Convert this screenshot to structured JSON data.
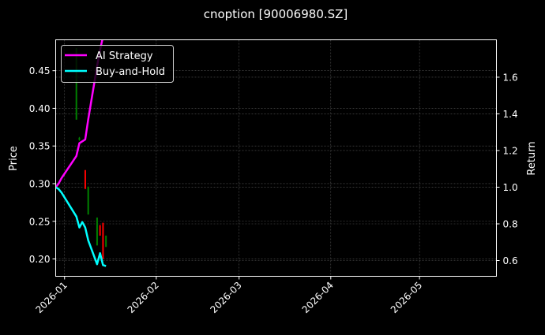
{
  "chart_data": {
    "type": "line",
    "title": "cnoption [90006980.SZ]",
    "xlabel": "",
    "ylabel_left": "Price",
    "ylabel_right": "Return",
    "xlim": [
      "2025-12-29",
      "2026-05-27"
    ],
    "ylim_left": [
      0.177,
      0.491
    ],
    "ylim_right": [
      0.514,
      1.804
    ],
    "x_ticks": [
      "2026-01",
      "2026-02",
      "2026-03",
      "2026-04",
      "2026-05"
    ],
    "x_tick_dates": [
      "2026-01-01",
      "2026-02-01",
      "2026-03-01",
      "2026-04-01",
      "2026-05-01"
    ],
    "y_ticks_left": [
      "0.20",
      "0.25",
      "0.30",
      "0.35",
      "0.40",
      "0.45"
    ],
    "y_ticks_right": [
      "0.6",
      "0.8",
      "1.0",
      "1.2",
      "1.4",
      "1.6"
    ],
    "grid": true,
    "legend_position": "top-left",
    "background": "#000000",
    "candles": {
      "up_color": "#008000",
      "down_color": "#ff0000",
      "data": [
        {
          "date": "2026-01-05",
          "open": 0.385,
          "high": 0.48,
          "low": 0.385,
          "close": 0.48
        },
        {
          "date": "2026-01-06",
          "open": 0.358,
          "high": 0.362,
          "low": 0.357,
          "close": 0.361
        },
        {
          "date": "2026-01-08",
          "open": 0.318,
          "high": 0.318,
          "low": 0.293,
          "close": 0.293
        },
        {
          "date": "2026-01-09",
          "open": 0.259,
          "high": 0.296,
          "low": 0.259,
          "close": 0.296
        },
        {
          "date": "2026-01-12",
          "open": 0.218,
          "high": 0.255,
          "low": 0.218,
          "close": 0.255
        },
        {
          "date": "2026-01-13",
          "open": 0.245,
          "high": 0.245,
          "low": 0.231,
          "close": 0.231
        },
        {
          "date": "2026-01-14",
          "open": 0.248,
          "high": 0.248,
          "low": 0.2,
          "close": 0.2
        },
        {
          "date": "2026-01-15",
          "open": 0.216,
          "high": 0.231,
          "low": 0.216,
          "close": 0.231
        }
      ]
    },
    "series": [
      {
        "name": "AI Strategy",
        "color": "#ff00ff",
        "axis": "right",
        "x": [
          "2025-12-29",
          "2025-12-30",
          "2025-12-31",
          "2026-01-05",
          "2026-01-06",
          "2026-01-07",
          "2026-01-08",
          "2026-01-09",
          "2026-01-12",
          "2026-01-13",
          "2026-01-14"
        ],
        "values": [
          1.0,
          1.02,
          1.05,
          1.17,
          1.24,
          1.25,
          1.26,
          1.37,
          1.66,
          1.75,
          1.82
        ]
      },
      {
        "name": "Buy-and-Hold",
        "color": "#00ffff",
        "axis": "right",
        "x": [
          "2025-12-29",
          "2025-12-30",
          "2025-12-31",
          "2026-01-05",
          "2026-01-06",
          "2026-01-07",
          "2026-01-08",
          "2026-01-09",
          "2026-01-12",
          "2026-01-13",
          "2026-01-14",
          "2026-01-15"
        ],
        "values": [
          1.0,
          0.99,
          0.97,
          0.84,
          0.78,
          0.81,
          0.78,
          0.71,
          0.58,
          0.64,
          0.575,
          0.57
        ]
      }
    ]
  }
}
